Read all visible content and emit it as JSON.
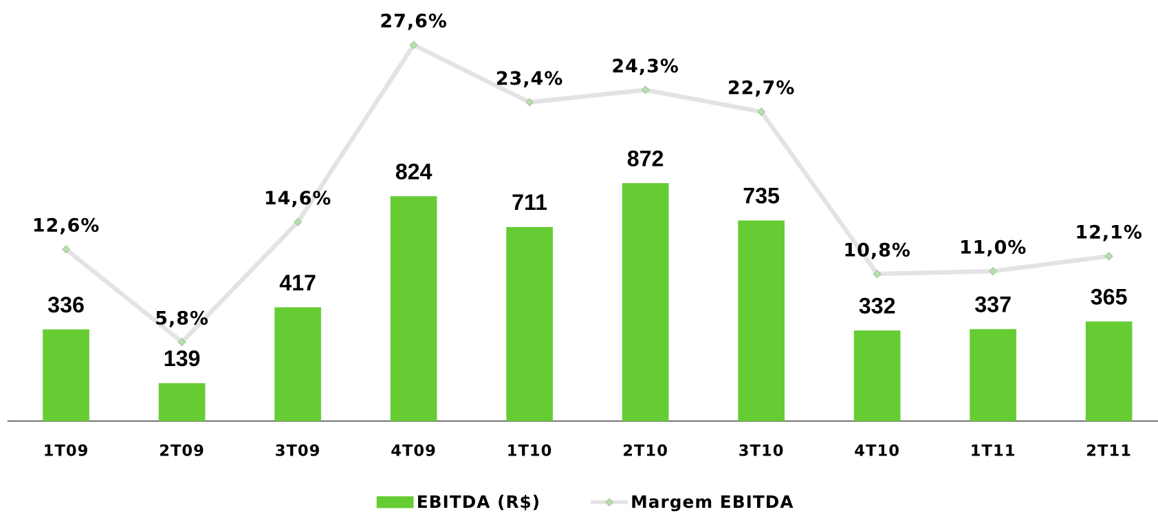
{
  "chart_data": {
    "type": "bar",
    "categories": [
      "1T09",
      "2T09",
      "3T09",
      "4T09",
      "1T10",
      "2T10",
      "3T10",
      "4T10",
      "1T11",
      "2T11"
    ],
    "series": [
      {
        "name": "EBITDA (R$)",
        "type": "bar",
        "color": "#66cc33",
        "values": [
          336,
          139,
          417,
          824,
          711,
          872,
          735,
          332,
          337,
          365
        ]
      },
      {
        "name": "Margem EBITDA",
        "type": "line",
        "axis": "y2",
        "color": "#e3e3e3",
        "marker_color": "#b9ddb0",
        "values": [
          12.6,
          5.8,
          14.6,
          27.6,
          23.4,
          24.3,
          22.7,
          10.8,
          11.0,
          12.1
        ],
        "value_labels": [
          "12,6%",
          "5,8%",
          "14,6%",
          "27,6%",
          "23,4%",
          "24,3%",
          "22,7%",
          "10,8%",
          "11,0%",
          "12,1%"
        ]
      }
    ],
    "ylim": [
      0,
      1543
    ],
    "y2lim": [
      0,
      30.9
    ],
    "legend": "bottom"
  }
}
